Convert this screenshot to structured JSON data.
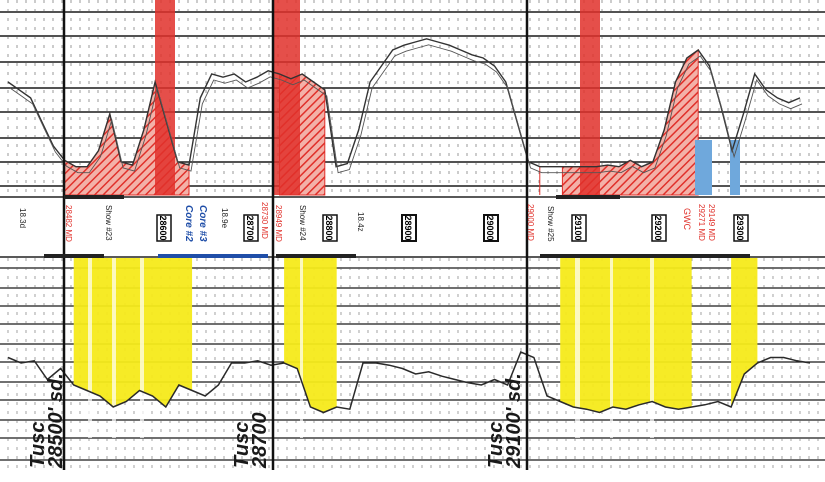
{
  "track_top": {
    "grid_color": "#222222",
    "fill_red": "#e0302a",
    "fill_hatch": "#f3b1a8",
    "curve_color": "#333333",
    "blue_fill": "#6fa8dc",
    "profile": [
      0.55,
      0.5,
      0.45,
      0.3,
      0.15,
      0.06,
      0.02,
      0.02,
      0.12,
      0.35,
      0.05,
      0.03,
      0.25,
      0.55,
      0.3,
      0.05,
      0.03,
      0.45,
      0.6,
      0.58,
      0.6,
      0.55,
      0.58,
      0.62,
      0.6,
      0.57,
      0.6,
      0.55,
      0.5,
      0.02,
      0.04,
      0.25,
      0.55,
      0.65,
      0.75,
      0.78,
      0.8,
      0.82,
      0.8,
      0.78,
      0.75,
      0.72,
      0.7,
      0.65,
      0.55,
      0.3,
      0.05,
      0.02,
      0.02,
      0.02,
      0.02,
      0.02,
      0.02,
      0.03,
      0.02,
      0.06,
      0.02,
      0.05,
      0.25,
      0.55,
      0.7,
      0.75,
      0.65,
      0.4,
      0.12,
      0.35,
      0.6,
      0.5,
      0.45,
      0.42,
      0.45
    ]
  },
  "depth_track": {
    "depth_boxes": [
      "28600",
      "28700",
      "28800",
      "28900",
      "29000",
      "29100",
      "29200",
      "29300"
    ],
    "red_labels": [
      "28482 MD",
      "28730 MD",
      "28949 MD",
      "29000 MD",
      "29271 MD",
      "29149 MD"
    ],
    "blue_labels": [
      "Core #2",
      "Core #3"
    ],
    "black_labels": [
      "18.3d",
      "Show #23",
      "Show #24",
      "18.4z",
      "Show #25",
      "GWC",
      "18.9e"
    ]
  },
  "track_bottom": {
    "fill_yellow": "#f5ea1a",
    "curve_color": "#333333",
    "profile": [
      0.25,
      0.3,
      0.28,
      0.45,
      0.35,
      0.5,
      0.55,
      0.6,
      0.7,
      0.65,
      0.55,
      0.6,
      0.7,
      0.5,
      0.55,
      0.6,
      0.5,
      0.3,
      0.3,
      0.28,
      0.32,
      0.3,
      0.35,
      0.7,
      0.75,
      0.7,
      0.72,
      0.3,
      0.3,
      0.32,
      0.35,
      0.4,
      0.38,
      0.42,
      0.45,
      0.48,
      0.5,
      0.45,
      0.5,
      0.2,
      0.25,
      0.6,
      0.65,
      0.7,
      0.72,
      0.75,
      0.7,
      0.72,
      0.68,
      0.65,
      0.7,
      0.72,
      0.7,
      0.68,
      0.65,
      0.7,
      0.4,
      0.3,
      0.25,
      0.25,
      0.28,
      0.3
    ]
  },
  "formation_labels": [
    {
      "name": "Tusc",
      "depth": "28500' sd."
    },
    {
      "name": "Tusc",
      "depth": "28700"
    },
    {
      "name": "Tusc",
      "depth": "29100' sd."
    }
  ]
}
